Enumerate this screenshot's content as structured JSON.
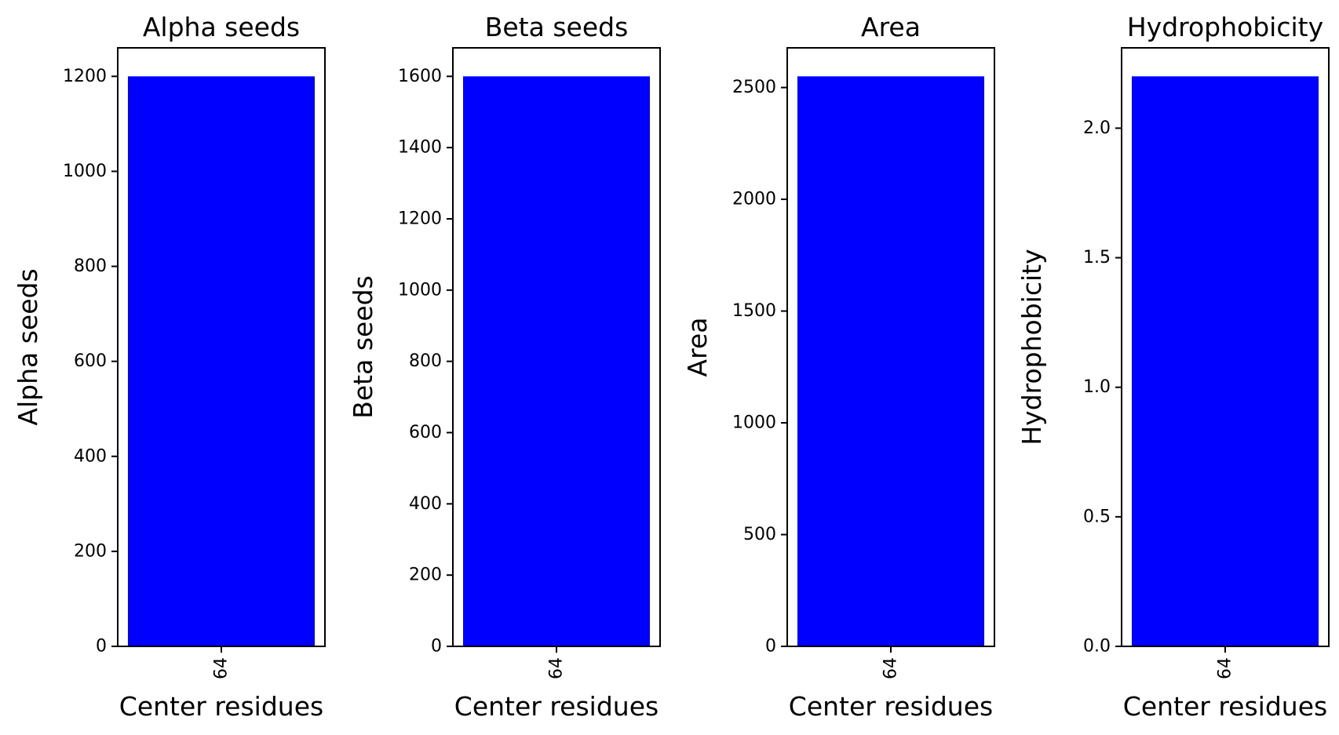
{
  "chart_data": [
    {
      "type": "bar",
      "title": "Alpha seeds",
      "xlabel": "Center residues",
      "ylabel": "Alpha seeds",
      "categories": [
        "64"
      ],
      "values": [
        1200
      ],
      "ylim": [
        0,
        1260
      ],
      "yticks": [
        0,
        200,
        400,
        600,
        800,
        1000,
        1200
      ],
      "bar_color": "#0000ff",
      "grid": false
    },
    {
      "type": "bar",
      "title": "Beta seeds",
      "xlabel": "Center residues",
      "ylabel": "Beta seeds",
      "categories": [
        "64"
      ],
      "values": [
        1600
      ],
      "ylim": [
        0,
        1680
      ],
      "yticks": [
        0,
        200,
        400,
        600,
        800,
        1000,
        1200,
        1400,
        1600
      ],
      "bar_color": "#0000ff",
      "grid": false
    },
    {
      "type": "bar",
      "title": "Area",
      "xlabel": "Center residues",
      "ylabel": "Area",
      "categories": [
        "64"
      ],
      "values": [
        2550
      ],
      "ylim": [
        0,
        2677.5
      ],
      "yticks": [
        0,
        500,
        1000,
        1500,
        2000,
        2500
      ],
      "bar_color": "#0000ff",
      "grid": false
    },
    {
      "type": "bar",
      "title": "Hydrophobicity",
      "xlabel": "Center residues",
      "ylabel": "Hydrophobicity",
      "categories": [
        "64"
      ],
      "values": [
        2.2
      ],
      "ylim": [
        0,
        2.31
      ],
      "yticks": [
        "0.0",
        "0.5",
        "1.0",
        "1.5",
        "2.0"
      ],
      "bar_color": "#0000ff",
      "grid": false
    }
  ]
}
